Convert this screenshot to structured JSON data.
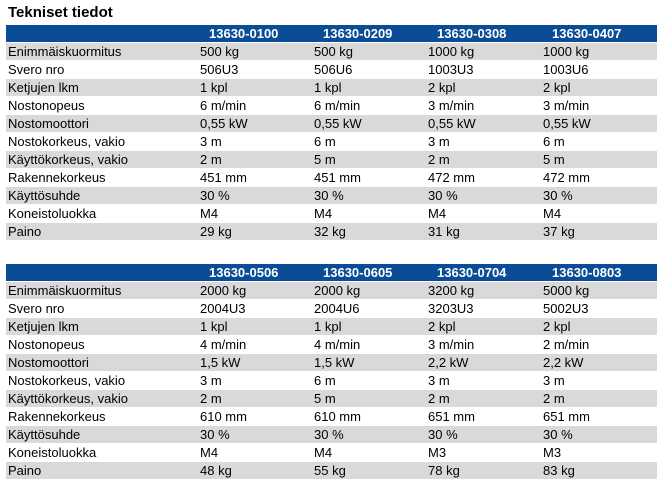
{
  "title": "Tekniset tiedot",
  "tables": [
    {
      "models": [
        "13630-0100",
        "13630-0209",
        "13630-0308",
        "13630-0407"
      ],
      "rows": [
        {
          "label": "Enimmäiskuormitus",
          "values": [
            "500 kg",
            "500 kg",
            "1000 kg",
            "1000 kg"
          ]
        },
        {
          "label": "Svero nro",
          "values": [
            "506U3",
            "506U6",
            "1003U3",
            "1003U6"
          ]
        },
        {
          "label": "Ketjujen lkm",
          "values": [
            "1 kpl",
            "1 kpl",
            "2 kpl",
            "2 kpl"
          ]
        },
        {
          "label": "Nostonopeus",
          "values": [
            "6 m/min",
            "6 m/min",
            "3 m/min",
            "3 m/min"
          ]
        },
        {
          "label": "Nostomoottori",
          "values": [
            "0,55 kW",
            "0,55 kW",
            "0,55 kW",
            "0,55 kW"
          ]
        },
        {
          "label": "Nostokorkeus, vakio",
          "values": [
            "3 m",
            "6 m",
            "3 m",
            "6 m"
          ]
        },
        {
          "label": "Käyttökorkeus, vakio",
          "values": [
            "2 m",
            "5 m",
            "2 m",
            "5 m"
          ]
        },
        {
          "label": "Rakennekorkeus",
          "values": [
            "451 mm",
            "451 mm",
            "472 mm",
            "472 mm"
          ]
        },
        {
          "label": "Käyttösuhde",
          "values": [
            "30 %",
            "30 %",
            "30 %",
            "30 %"
          ]
        },
        {
          "label": "Koneistoluokka",
          "values": [
            "M4",
            "M4",
            "M4",
            "M4"
          ]
        },
        {
          "label": "Paino",
          "values": [
            "29 kg",
            "32 kg",
            "31 kg",
            "37 kg"
          ]
        }
      ]
    },
    {
      "models": [
        "13630-0506",
        "13630-0605",
        "13630-0704",
        "13630-0803"
      ],
      "rows": [
        {
          "label": "Enimmäiskuormitus",
          "values": [
            "2000 kg",
            "2000 kg",
            "3200 kg",
            "5000 kg"
          ]
        },
        {
          "label": "Svero nro",
          "values": [
            "2004U3",
            "2004U6",
            "3203U3",
            "5002U3"
          ]
        },
        {
          "label": "Ketjujen lkm",
          "values": [
            "1 kpl",
            "1 kpl",
            "2 kpl",
            "2 kpl"
          ]
        },
        {
          "label": "Nostonopeus",
          "values": [
            "4 m/min",
            "4 m/min",
            "3 m/min",
            "2 m/min"
          ]
        },
        {
          "label": "Nostomoottori",
          "values": [
            "1,5 kW",
            "1,5 kW",
            "2,2 kW",
            "2,2 kW"
          ]
        },
        {
          "label": "Nostokorkeus, vakio",
          "values": [
            "3 m",
            "6 m",
            "3 m",
            "3 m"
          ]
        },
        {
          "label": "Käyttökorkeus, vakio",
          "values": [
            "2 m",
            "5 m",
            "2 m",
            "2 m"
          ]
        },
        {
          "label": "Rakennekorkeus",
          "values": [
            "610 mm",
            "610 mm",
            "651 mm",
            "651 mm"
          ]
        },
        {
          "label": "Käyttösuhde",
          "values": [
            "30 %",
            "30 %",
            "30 %",
            "30 %"
          ]
        },
        {
          "label": "Koneistoluokka",
          "values": [
            "M4",
            "M4",
            "M3",
            "M3"
          ]
        },
        {
          "label": "Paino",
          "values": [
            "48 kg",
            "55 kg",
            "78 kg",
            "83 kg"
          ]
        }
      ]
    }
  ]
}
